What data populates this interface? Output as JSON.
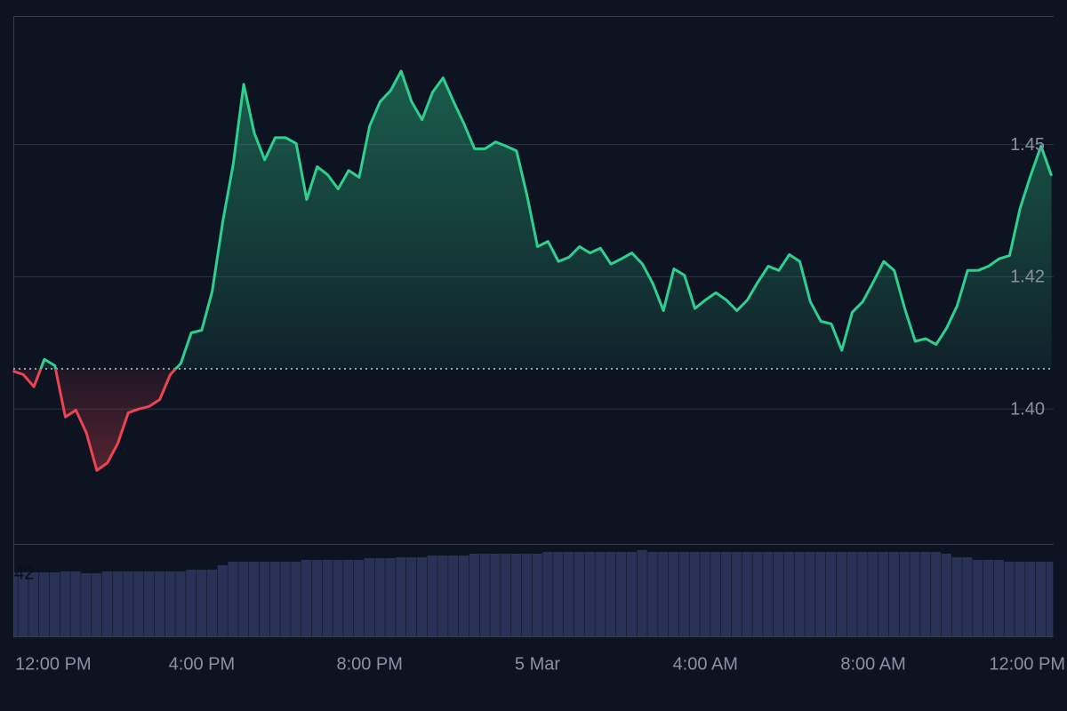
{
  "chart_data": [
    {
      "type": "line",
      "x": [
        11.5,
        11.75,
        12,
        12.25,
        12.5,
        12.75,
        13,
        13.25,
        13.5,
        13.75,
        14,
        14.25,
        14.5,
        14.75,
        15,
        15.25,
        15.5,
        15.75,
        16,
        16.25,
        16.5,
        16.75,
        17,
        17.25,
        17.5,
        17.75,
        18,
        18.25,
        18.5,
        18.75,
        19,
        19.25,
        19.5,
        19.75,
        20,
        20.25,
        20.5,
        20.75,
        21,
        21.25,
        21.5,
        21.75,
        22,
        22.25,
        22.5,
        22.75,
        23,
        23.25,
        23.5,
        23.75,
        24,
        24.25,
        24.5,
        24.75,
        25,
        25.25,
        25.5,
        25.75,
        26,
        26.25,
        26.5,
        26.75,
        27,
        27.25,
        27.5,
        27.75,
        28,
        28.25,
        28.5,
        28.75,
        29,
        29.25,
        29.5,
        29.75,
        30,
        30.25,
        30.5,
        30.75,
        31,
        31.25,
        31.5,
        31.75,
        32,
        32.25,
        32.5,
        32.75,
        33,
        33.25,
        33.5,
        33.75,
        34,
        34.25,
        34.5,
        34.75,
        35,
        35.25,
        35.5,
        35.75,
        36,
        36.25
      ],
      "values": [
        1.4072,
        1.4065,
        1.4042,
        1.4094,
        1.4082,
        1.3985,
        1.3998,
        1.3955,
        1.3884,
        1.3898,
        1.3935,
        1.3993,
        1.4,
        1.4005,
        1.4018,
        1.4065,
        1.4086,
        1.4144,
        1.4149,
        1.4223,
        1.4354,
        1.4463,
        1.4614,
        1.4522,
        1.4471,
        1.4513,
        1.4513,
        1.4502,
        1.4396,
        1.4458,
        1.4443,
        1.4416,
        1.4451,
        1.4438,
        1.4535,
        1.4581,
        1.4602,
        1.4639,
        1.4581,
        1.4547,
        1.4599,
        1.4626,
        1.4581,
        1.4539,
        1.4492,
        1.4492,
        1.4505,
        1.4497,
        1.4488,
        1.4404,
        1.4307,
        1.4317,
        1.4279,
        1.4287,
        1.4307,
        1.4295,
        1.4304,
        1.4274,
        1.4284,
        1.4295,
        1.4274,
        1.4237,
        1.4186,
        1.4265,
        1.4253,
        1.419,
        1.4206,
        1.422,
        1.4206,
        1.4186,
        1.4206,
        1.424,
        1.427,
        1.4262,
        1.4292,
        1.4279,
        1.4203,
        1.4166,
        1.4161,
        1.4111,
        1.4183,
        1.4203,
        1.424,
        1.4279,
        1.4262,
        1.419,
        1.4128,
        1.4133,
        1.4122,
        1.4153,
        1.4195,
        1.4262,
        1.4262,
        1.427,
        1.4284,
        1.429,
        1.4379,
        1.4441,
        1.4497,
        1.4441
      ],
      "baseline": 1.4076,
      "up_color": "#2fd08f",
      "down_color": "#ec4450",
      "xlim": [
        11.51,
        36.3
      ],
      "xticks": [
        {
          "value": 12,
          "label": "12:00 PM"
        },
        {
          "value": 16,
          "label": "4:00 PM"
        },
        {
          "value": 20,
          "label": "8:00 PM"
        },
        {
          "value": 24,
          "label": "5 Mar"
        },
        {
          "value": 28,
          "label": "4:00 AM"
        },
        {
          "value": 32,
          "label": "8:00 AM"
        },
        {
          "value": 36,
          "label": "12:00 PM"
        }
      ],
      "ylim": [
        1.3745,
        1.4743
      ],
      "yticks": [
        {
          "value": 1.4,
          "label": "1.40"
        },
        {
          "value": 1.425,
          "label": "1.42"
        },
        {
          "value": 1.45,
          "label": "1.45"
        }
      ],
      "grid": true
    },
    {
      "type": "bar",
      "x": [
        11.5,
        11.75,
        12,
        12.25,
        12.5,
        12.75,
        13,
        13.25,
        13.5,
        13.75,
        14,
        14.25,
        14.5,
        14.75,
        15,
        15.25,
        15.5,
        15.75,
        16,
        16.25,
        16.5,
        16.75,
        17,
        17.25,
        17.5,
        17.75,
        18,
        18.25,
        18.5,
        18.75,
        19,
        19.25,
        19.5,
        19.75,
        20,
        20.25,
        20.5,
        20.75,
        21,
        21.25,
        21.5,
        21.75,
        22,
        22.25,
        22.5,
        22.75,
        23,
        23.25,
        23.5,
        23.75,
        24,
        24.25,
        24.5,
        24.75,
        25,
        25.25,
        25.5,
        25.75,
        26,
        26.25,
        26.5,
        26.75,
        27,
        27.25,
        27.5,
        27.75,
        28,
        28.25,
        28.5,
        28.75,
        29,
        29.25,
        29.5,
        29.75,
        30,
        30.25,
        30.5,
        30.75,
        31,
        31.25,
        31.5,
        31.75,
        32,
        32.25,
        32.5,
        32.75,
        33,
        33.25,
        33.5,
        33.75,
        34,
        34.25,
        34.5,
        34.75,
        35,
        35.25,
        35.5,
        35.75,
        36,
        36.25
      ],
      "values": [
        42.6,
        42.6,
        42.6,
        42.6,
        42.6,
        43.2,
        43.2,
        42,
        42,
        43.2,
        43.2,
        43.2,
        43.2,
        43.2,
        43.2,
        43.2,
        43.2,
        44.4,
        44.4,
        44.4,
        47.3,
        49.7,
        49.7,
        49.7,
        49.7,
        49.7,
        49.7,
        49.7,
        50.9,
        50.9,
        50.9,
        50.9,
        50.9,
        50.9,
        52.1,
        52.1,
        52.1,
        52.6,
        52.6,
        52.6,
        53.8,
        53.8,
        53.8,
        53.8,
        55,
        55,
        55,
        55,
        55,
        55,
        55,
        56.2,
        56.2,
        56.2,
        56.2,
        56.2,
        56.2,
        56.2,
        56.2,
        56.2,
        57.4,
        56.2,
        56.2,
        56.2,
        56.2,
        56.2,
        56.2,
        56.2,
        56.2,
        56.2,
        56.2,
        56.2,
        56.2,
        56.2,
        56.2,
        56.2,
        56.2,
        56.2,
        56.2,
        56.2,
        56.2,
        56.2,
        56.2,
        56.2,
        56.2,
        56.2,
        56.2,
        56.2,
        56.2,
        55,
        52.6,
        52.6,
        50.9,
        50.9,
        50.9,
        49.7,
        49.7,
        49.7,
        49.7,
        49.7
      ],
      "color": "#283256",
      "xlim": [
        11.51,
        36.3
      ],
      "ylim": [
        0,
        61.5
      ],
      "yticks": [
        42
      ]
    }
  ]
}
